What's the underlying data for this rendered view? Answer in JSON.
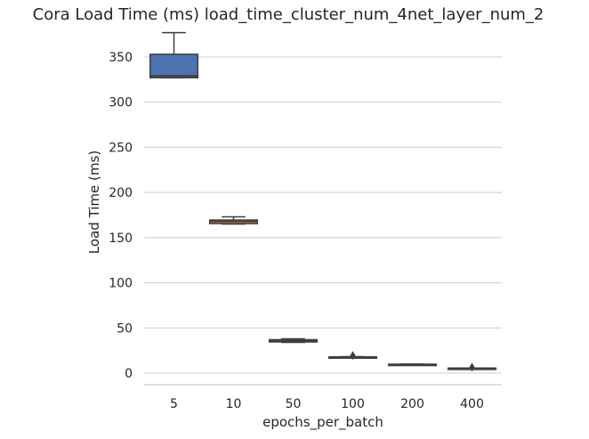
{
  "chart_data": {
    "type": "box",
    "title": "Cora Load Time (ms) load_time_cluster_num_4net_layer_num_2",
    "xlabel": "epochs_per_batch",
    "ylabel": "Load Time (ms)",
    "ylim": [
      -13,
      378
    ],
    "yticks": [
      0,
      50,
      100,
      150,
      200,
      250,
      300,
      350
    ],
    "ytick_labels": [
      "0",
      "50",
      "100",
      "150",
      "200",
      "250",
      "300",
      "350"
    ],
    "grid": "horizontal",
    "categories": [
      "5",
      "10",
      "50",
      "100",
      "200",
      "400"
    ],
    "boxes": [
      {
        "category": "5",
        "color": "#4c72b0",
        "whisker_low": 327,
        "q1": 327,
        "median": 329,
        "q3": 353,
        "whisker_high": 377,
        "outliers": []
      },
      {
        "category": "10",
        "color": "#dd8452",
        "whisker_low": 165,
        "q1": 165.5,
        "median": 168,
        "q3": 169.5,
        "whisker_high": 173,
        "outliers": []
      },
      {
        "category": "50",
        "color": "#55a868",
        "whisker_low": 34,
        "q1": 34.5,
        "median": 35.5,
        "q3": 37,
        "whisker_high": 38,
        "outliers": []
      },
      {
        "category": "100",
        "color": "#c44e52",
        "whisker_low": 17,
        "q1": 17.2,
        "median": 17.6,
        "q3": 18,
        "whisker_high": 18.3,
        "outliers": [
          19.5
        ]
      },
      {
        "category": "200",
        "color": "#8172b3",
        "whisker_low": 9,
        "q1": 9.2,
        "median": 9.5,
        "q3": 9.8,
        "whisker_high": 10,
        "outliers": []
      },
      {
        "category": "400",
        "color": "#937860",
        "whisker_low": 5,
        "q1": 5.1,
        "median": 5.3,
        "q3": 5.5,
        "whisker_high": 5.6,
        "outliers": [
          6.5
        ]
      }
    ]
  }
}
